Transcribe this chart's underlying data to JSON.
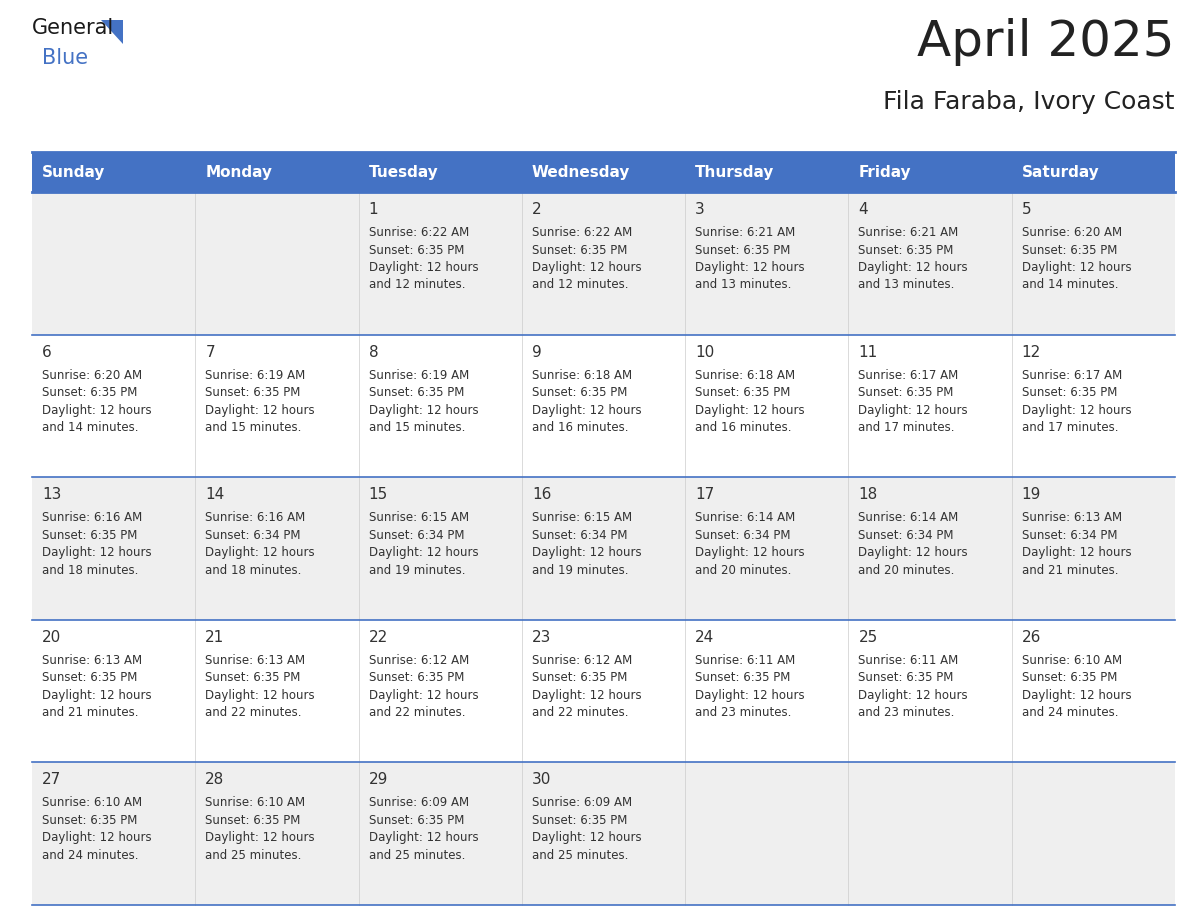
{
  "title": "April 2025",
  "subtitle": "Fila Faraba, Ivory Coast",
  "header_color": "#4472C4",
  "header_text_color": "#FFFFFF",
  "day_names": [
    "Sunday",
    "Monday",
    "Tuesday",
    "Wednesday",
    "Thursday",
    "Friday",
    "Saturday"
  ],
  "bg_color": "#FFFFFF",
  "cell_bg_odd": "#EFEFEF",
  "cell_bg_even": "#FFFFFF",
  "row_border_color": "#4472C4",
  "day_num_color": "#333333",
  "day_text_color": "#333333",
  "title_color": "#222222",
  "title_fontsize": 36,
  "subtitle_fontsize": 18,
  "header_fontsize": 11,
  "day_num_fontsize": 11,
  "cell_text_fontsize": 8.5,
  "calendar_data": [
    [
      {
        "day": "",
        "sunrise": "",
        "sunset": "",
        "daylight": ""
      },
      {
        "day": "",
        "sunrise": "",
        "sunset": "",
        "daylight": ""
      },
      {
        "day": "1",
        "sunrise": "6:22 AM",
        "sunset": "6:35 PM",
        "daylight": "12 hours and 12 minutes."
      },
      {
        "day": "2",
        "sunrise": "6:22 AM",
        "sunset": "6:35 PM",
        "daylight": "12 hours and 12 minutes."
      },
      {
        "day": "3",
        "sunrise": "6:21 AM",
        "sunset": "6:35 PM",
        "daylight": "12 hours and 13 minutes."
      },
      {
        "day": "4",
        "sunrise": "6:21 AM",
        "sunset": "6:35 PM",
        "daylight": "12 hours and 13 minutes."
      },
      {
        "day": "5",
        "sunrise": "6:20 AM",
        "sunset": "6:35 PM",
        "daylight": "12 hours and 14 minutes."
      }
    ],
    [
      {
        "day": "6",
        "sunrise": "6:20 AM",
        "sunset": "6:35 PM",
        "daylight": "12 hours and 14 minutes."
      },
      {
        "day": "7",
        "sunrise": "6:19 AM",
        "sunset": "6:35 PM",
        "daylight": "12 hours and 15 minutes."
      },
      {
        "day": "8",
        "sunrise": "6:19 AM",
        "sunset": "6:35 PM",
        "daylight": "12 hours and 15 minutes."
      },
      {
        "day": "9",
        "sunrise": "6:18 AM",
        "sunset": "6:35 PM",
        "daylight": "12 hours and 16 minutes."
      },
      {
        "day": "10",
        "sunrise": "6:18 AM",
        "sunset": "6:35 PM",
        "daylight": "12 hours and 16 minutes."
      },
      {
        "day": "11",
        "sunrise": "6:17 AM",
        "sunset": "6:35 PM",
        "daylight": "12 hours and 17 minutes."
      },
      {
        "day": "12",
        "sunrise": "6:17 AM",
        "sunset": "6:35 PM",
        "daylight": "12 hours and 17 minutes."
      }
    ],
    [
      {
        "day": "13",
        "sunrise": "6:16 AM",
        "sunset": "6:35 PM",
        "daylight": "12 hours and 18 minutes."
      },
      {
        "day": "14",
        "sunrise": "6:16 AM",
        "sunset": "6:34 PM",
        "daylight": "12 hours and 18 minutes."
      },
      {
        "day": "15",
        "sunrise": "6:15 AM",
        "sunset": "6:34 PM",
        "daylight": "12 hours and 19 minutes."
      },
      {
        "day": "16",
        "sunrise": "6:15 AM",
        "sunset": "6:34 PM",
        "daylight": "12 hours and 19 minutes."
      },
      {
        "day": "17",
        "sunrise": "6:14 AM",
        "sunset": "6:34 PM",
        "daylight": "12 hours and 20 minutes."
      },
      {
        "day": "18",
        "sunrise": "6:14 AM",
        "sunset": "6:34 PM",
        "daylight": "12 hours and 20 minutes."
      },
      {
        "day": "19",
        "sunrise": "6:13 AM",
        "sunset": "6:34 PM",
        "daylight": "12 hours and 21 minutes."
      }
    ],
    [
      {
        "day": "20",
        "sunrise": "6:13 AM",
        "sunset": "6:35 PM",
        "daylight": "12 hours and 21 minutes."
      },
      {
        "day": "21",
        "sunrise": "6:13 AM",
        "sunset": "6:35 PM",
        "daylight": "12 hours and 22 minutes."
      },
      {
        "day": "22",
        "sunrise": "6:12 AM",
        "sunset": "6:35 PM",
        "daylight": "12 hours and 22 minutes."
      },
      {
        "day": "23",
        "sunrise": "6:12 AM",
        "sunset": "6:35 PM",
        "daylight": "12 hours and 22 minutes."
      },
      {
        "day": "24",
        "sunrise": "6:11 AM",
        "sunset": "6:35 PM",
        "daylight": "12 hours and 23 minutes."
      },
      {
        "day": "25",
        "sunrise": "6:11 AM",
        "sunset": "6:35 PM",
        "daylight": "12 hours and 23 minutes."
      },
      {
        "day": "26",
        "sunrise": "6:10 AM",
        "sunset": "6:35 PM",
        "daylight": "12 hours and 24 minutes."
      }
    ],
    [
      {
        "day": "27",
        "sunrise": "6:10 AM",
        "sunset": "6:35 PM",
        "daylight": "12 hours and 24 minutes."
      },
      {
        "day": "28",
        "sunrise": "6:10 AM",
        "sunset": "6:35 PM",
        "daylight": "12 hours and 25 minutes."
      },
      {
        "day": "29",
        "sunrise": "6:09 AM",
        "sunset": "6:35 PM",
        "daylight": "12 hours and 25 minutes."
      },
      {
        "day": "30",
        "sunrise": "6:09 AM",
        "sunset": "6:35 PM",
        "daylight": "12 hours and 25 minutes."
      },
      {
        "day": "",
        "sunrise": "",
        "sunset": "",
        "daylight": ""
      },
      {
        "day": "",
        "sunrise": "",
        "sunset": "",
        "daylight": ""
      },
      {
        "day": "",
        "sunrise": "",
        "sunset": "",
        "daylight": ""
      }
    ]
  ]
}
